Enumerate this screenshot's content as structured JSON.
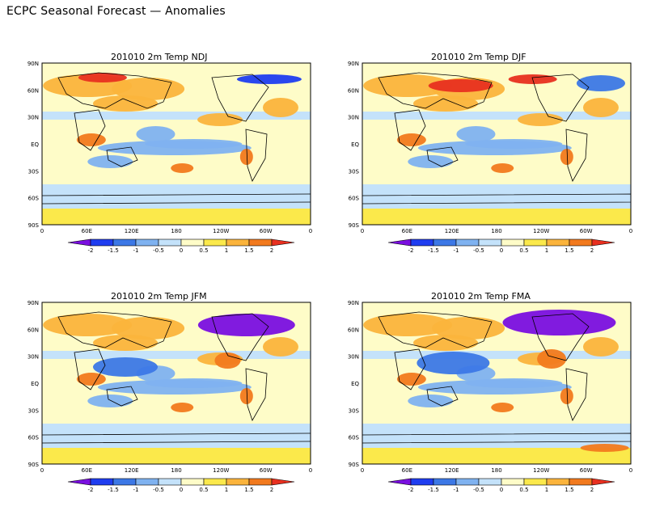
{
  "page_title": "ECPC Seasonal Forecast — Anomalies",
  "colorbar": {
    "ticks": [
      "-2",
      "-1.5",
      "-1",
      "-0.5",
      "0",
      "0.5",
      "1",
      "1.5",
      "2"
    ],
    "colors": [
      "#7a0fe0",
      "#1f3df0",
      "#3c78e6",
      "#7fb2f0",
      "#c4e2fa",
      "#fefcc8",
      "#fbe94b",
      "#fbb43c",
      "#f27a1e",
      "#e83020"
    ]
  },
  "axes": {
    "lat_labels": [
      "90N",
      "60N",
      "30N",
      "EQ",
      "30S",
      "60S",
      "90S"
    ],
    "lon_labels": [
      "0",
      "60E",
      "120E",
      "180",
      "120W",
      "60W",
      "0"
    ]
  },
  "panels": [
    {
      "id": "ndj",
      "date": "201010",
      "variable": "2m Temp",
      "season": "NDJ"
    },
    {
      "id": "djf",
      "date": "201010",
      "variable": "2m Temp",
      "season": "DJF"
    },
    {
      "id": "jfm",
      "date": "201010",
      "variable": "2m Temp",
      "season": "JFM"
    },
    {
      "id": "fma",
      "date": "201010",
      "variable": "2m Temp",
      "season": "FMA"
    }
  ]
}
